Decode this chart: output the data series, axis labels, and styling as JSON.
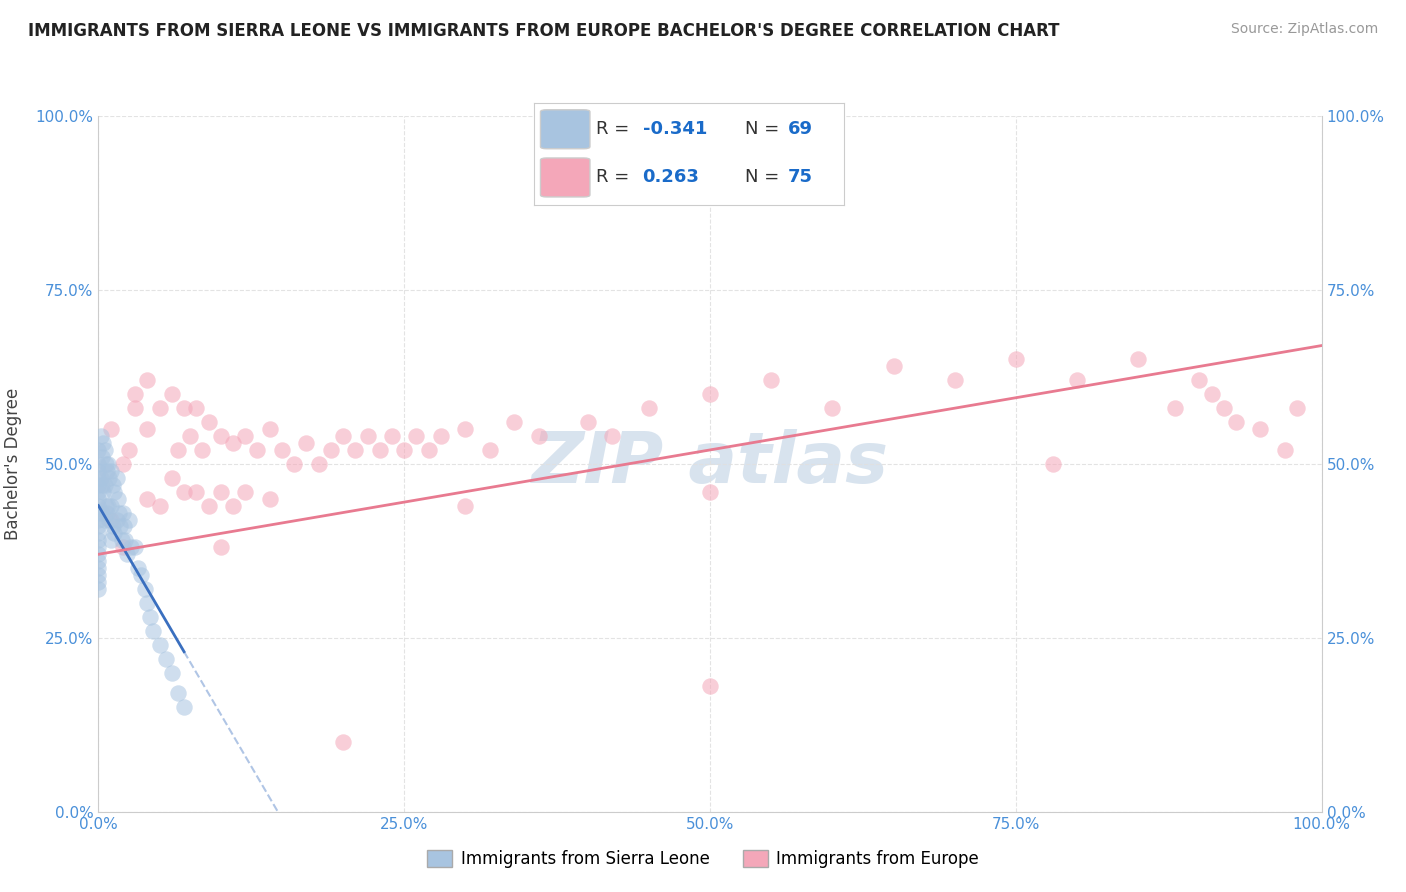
{
  "title": "IMMIGRANTS FROM SIERRA LEONE VS IMMIGRANTS FROM EUROPE BACHELOR'S DEGREE CORRELATION CHART",
  "source": "Source: ZipAtlas.com",
  "ylabel": "Bachelor's Degree",
  "xlim": [
    0,
    1.0
  ],
  "ylim": [
    0,
    1.0
  ],
  "xtick_labels": [
    "0.0%",
    "25.0%",
    "50.0%",
    "75.0%",
    "100.0%"
  ],
  "ytick_labels": [
    "0.0%",
    "25.0%",
    "50.0%",
    "75.0%",
    "100.0%"
  ],
  "xtick_vals": [
    0.0,
    0.25,
    0.5,
    0.75,
    1.0
  ],
  "ytick_vals": [
    0.0,
    0.25,
    0.5,
    0.75,
    1.0
  ],
  "blue_R": -0.341,
  "blue_N": 69,
  "pink_R": 0.263,
  "pink_N": 75,
  "blue_color": "#a8c4e0",
  "pink_color": "#f4a7b9",
  "blue_line_color": "#3a6fbf",
  "pink_line_color": "#e87a90",
  "legend_label_blue": "Immigrants from Sierra Leone",
  "legend_label_pink": "Immigrants from Europe",
  "watermark_color": "#c8d8e8",
  "background_color": "#ffffff",
  "grid_color": "#e0e0e0",
  "blue_scatter_x": [
    0.0,
    0.0,
    0.0,
    0.0,
    0.0,
    0.0,
    0.0,
    0.0,
    0.0,
    0.0,
    0.0,
    0.0,
    0.0,
    0.0,
    0.0,
    0.0,
    0.0,
    0.0,
    0.0,
    0.0,
    0.002,
    0.002,
    0.003,
    0.003,
    0.003,
    0.004,
    0.004,
    0.005,
    0.005,
    0.005,
    0.006,
    0.006,
    0.007,
    0.007,
    0.008,
    0.008,
    0.009,
    0.009,
    0.01,
    0.01,
    0.01,
    0.012,
    0.012,
    0.013,
    0.013,
    0.015,
    0.015,
    0.016,
    0.017,
    0.018,
    0.019,
    0.02,
    0.021,
    0.022,
    0.023,
    0.025,
    0.027,
    0.03,
    0.032,
    0.035,
    0.038,
    0.04,
    0.042,
    0.045,
    0.05,
    0.055,
    0.06,
    0.065,
    0.07
  ],
  "blue_scatter_y": [
    0.52,
    0.5,
    0.49,
    0.48,
    0.47,
    0.46,
    0.45,
    0.44,
    0.43,
    0.42,
    0.41,
    0.4,
    0.39,
    0.38,
    0.37,
    0.36,
    0.35,
    0.34,
    0.33,
    0.32,
    0.54,
    0.48,
    0.51,
    0.47,
    0.43,
    0.53,
    0.46,
    0.52,
    0.47,
    0.42,
    0.5,
    0.44,
    0.49,
    0.43,
    0.5,
    0.44,
    0.48,
    0.42,
    0.49,
    0.44,
    0.39,
    0.47,
    0.41,
    0.46,
    0.4,
    0.48,
    0.42,
    0.45,
    0.43,
    0.41,
    0.39,
    0.43,
    0.41,
    0.39,
    0.37,
    0.42,
    0.38,
    0.38,
    0.35,
    0.34,
    0.32,
    0.3,
    0.28,
    0.26,
    0.24,
    0.22,
    0.2,
    0.17,
    0.15
  ],
  "pink_scatter_x": [
    0.01,
    0.01,
    0.02,
    0.02,
    0.025,
    0.03,
    0.03,
    0.04,
    0.04,
    0.04,
    0.05,
    0.05,
    0.06,
    0.06,
    0.065,
    0.07,
    0.07,
    0.075,
    0.08,
    0.08,
    0.085,
    0.09,
    0.09,
    0.1,
    0.1,
    0.11,
    0.11,
    0.12,
    0.12,
    0.13,
    0.14,
    0.14,
    0.15,
    0.16,
    0.17,
    0.18,
    0.19,
    0.2,
    0.21,
    0.22,
    0.23,
    0.24,
    0.25,
    0.26,
    0.27,
    0.28,
    0.3,
    0.32,
    0.34,
    0.36,
    0.4,
    0.42,
    0.45,
    0.5,
    0.5,
    0.55,
    0.6,
    0.65,
    0.7,
    0.75,
    0.78,
    0.8,
    0.85,
    0.88,
    0.9,
    0.91,
    0.92,
    0.93,
    0.95,
    0.97,
    0.98,
    0.5,
    0.3,
    0.2,
    0.1
  ],
  "pink_scatter_y": [
    0.55,
    0.42,
    0.5,
    0.38,
    0.52,
    0.6,
    0.58,
    0.62,
    0.55,
    0.45,
    0.58,
    0.44,
    0.6,
    0.48,
    0.52,
    0.58,
    0.46,
    0.54,
    0.58,
    0.46,
    0.52,
    0.56,
    0.44,
    0.54,
    0.46,
    0.53,
    0.44,
    0.54,
    0.46,
    0.52,
    0.55,
    0.45,
    0.52,
    0.5,
    0.53,
    0.5,
    0.52,
    0.54,
    0.52,
    0.54,
    0.52,
    0.54,
    0.52,
    0.54,
    0.52,
    0.54,
    0.55,
    0.52,
    0.56,
    0.54,
    0.56,
    0.54,
    0.58,
    0.6,
    0.46,
    0.62,
    0.58,
    0.64,
    0.62,
    0.65,
    0.5,
    0.62,
    0.65,
    0.58,
    0.62,
    0.6,
    0.58,
    0.56,
    0.55,
    0.52,
    0.58,
    0.18,
    0.44,
    0.1,
    0.38
  ],
  "blue_line_intercept": 0.44,
  "blue_line_slope": -3.0,
  "pink_line_intercept": 0.37,
  "pink_line_slope": 0.3
}
